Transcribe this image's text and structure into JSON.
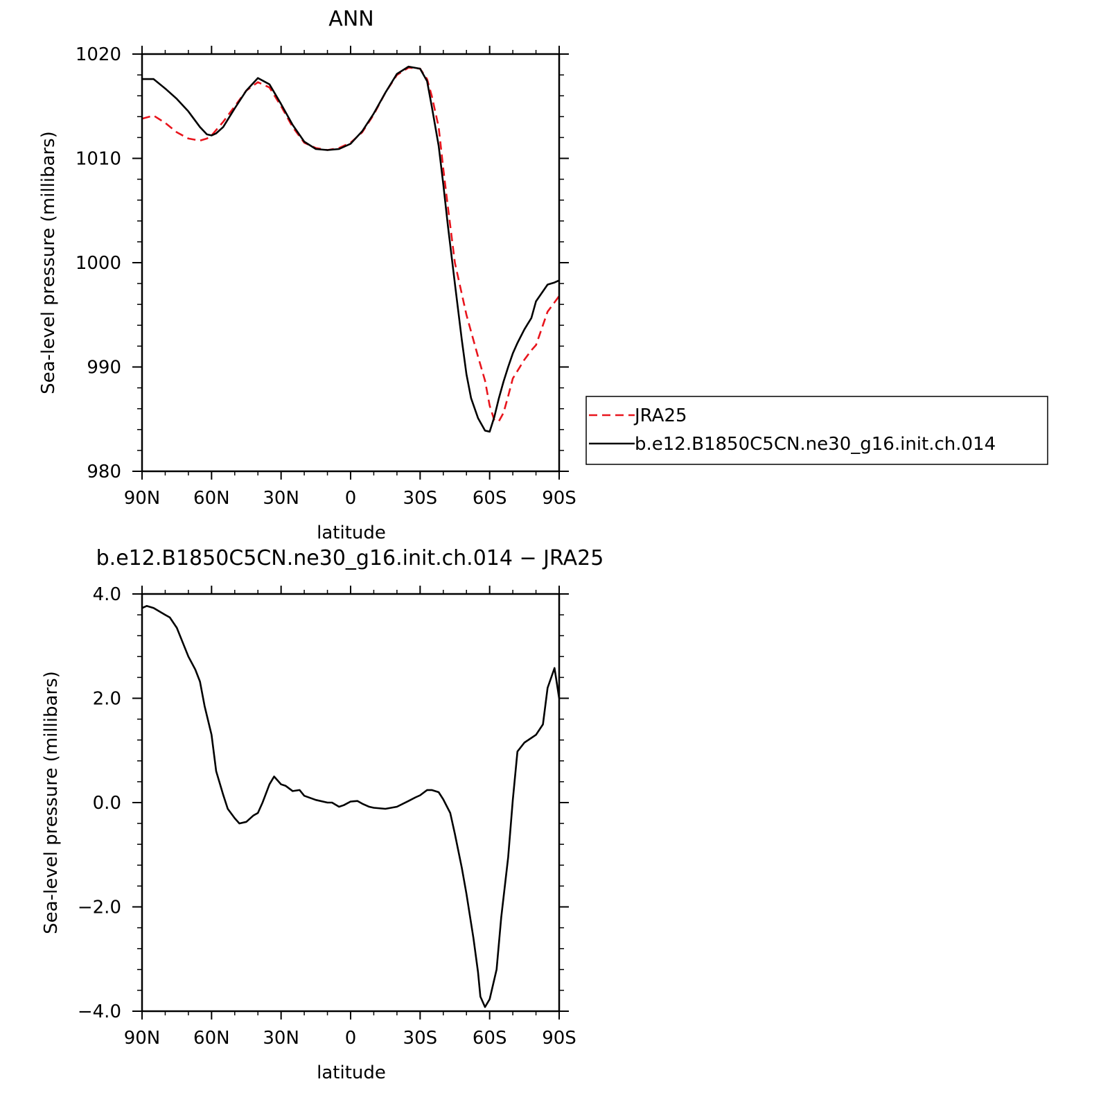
{
  "chart_data": [
    {
      "type": "line",
      "title": "ANN",
      "xlabel": "latitude",
      "ylabel": "Sea-level pressure (millibars)",
      "xlim": [
        90,
        -90
      ],
      "ylim": [
        980,
        1020
      ],
      "x_ticks": [
        {
          "value": 90,
          "label": "90N"
        },
        {
          "value": 60,
          "label": "60N"
        },
        {
          "value": 30,
          "label": "30N"
        },
        {
          "value": 0,
          "label": "0"
        },
        {
          "value": -30,
          "label": "30S"
        },
        {
          "value": -60,
          "label": "60S"
        },
        {
          "value": -90,
          "label": "90S"
        }
      ],
      "y_ticks": [
        {
          "value": 1020,
          "label": "1020"
        },
        {
          "value": 1010,
          "label": "1010"
        },
        {
          "value": 1000,
          "label": "1000"
        },
        {
          "value": 990,
          "label": "990"
        },
        {
          "value": 980,
          "label": "980"
        }
      ],
      "legend": {
        "placement": "right"
      },
      "series": [
        {
          "name": "JRA25",
          "color": "#e8141c",
          "dash": true,
          "x": [
            90,
            85,
            80,
            75,
            70,
            65,
            62,
            60,
            55,
            50,
            45,
            40,
            35,
            30,
            25,
            20,
            15,
            10,
            5,
            0,
            -5,
            -10,
            -15,
            -20,
            -25,
            -30,
            -33,
            -35,
            -38,
            -40,
            -42,
            -45,
            -50,
            -55,
            -58,
            -60,
            -62,
            -64,
            -66,
            -68,
            -70,
            -75,
            -78,
            -80,
            -85,
            -90
          ],
          "y": [
            1013.8,
            1014.1,
            1013.4,
            1012.5,
            1011.9,
            1011.7,
            1011.9,
            1012.2,
            1013.5,
            1015,
            1016.5,
            1017.3,
            1016.8,
            1015,
            1013,
            1011.5,
            1011,
            1010.8,
            1011,
            1011.5,
            1012.5,
            1014.2,
            1016.3,
            1018,
            1018.7,
            1018.6,
            1017.6,
            1016,
            1013,
            1009,
            1005.3,
            1000,
            995,
            991,
            988.7,
            986.3,
            984.9,
            984.8,
            985.6,
            987.2,
            988.9,
            990.7,
            991.6,
            992.1,
            995.3,
            996.8
          ]
        },
        {
          "name": "b.e12.B1850C5CN.ne30_g16.init.ch.014",
          "color": "#000000",
          "dash": false,
          "x": [
            90,
            85,
            80,
            75,
            70,
            65,
            62,
            60,
            58,
            55,
            50,
            45,
            40,
            35,
            30,
            25,
            20,
            15,
            10,
            5,
            0,
            -5,
            -10,
            -15,
            -20,
            -25,
            -30,
            -33,
            -35,
            -38,
            -40,
            -42,
            -45,
            -48,
            -50,
            -52,
            -55,
            -58,
            -60,
            -62,
            -64,
            -66,
            -68,
            -70,
            -72,
            -75,
            -78,
            -80,
            -85,
            -88,
            -90
          ],
          "y": [
            1017.6,
            1017.6,
            1016.7,
            1015.7,
            1014.5,
            1013,
            1012.3,
            1012.2,
            1012.4,
            1013,
            1014.8,
            1016.5,
            1017.7,
            1017.1,
            1015.2,
            1013.2,
            1011.6,
            1010.9,
            1010.8,
            1010.9,
            1011.4,
            1012.6,
            1014.3,
            1016.3,
            1018.1,
            1018.8,
            1018.6,
            1017.4,
            1015,
            1011.2,
            1007.5,
            1003.5,
            998,
            992.6,
            989.3,
            987,
            985.1,
            983.9,
            983.8,
            985.2,
            987,
            988.6,
            990,
            991.3,
            992.3,
            993.6,
            994.7,
            996.3,
            997.9,
            998.1,
            998.3
          ]
        }
      ]
    },
    {
      "type": "line",
      "title": "b.e12.B1850C5CN.ne30_g16.init.ch.014 − JRA25",
      "xlabel": "latitude",
      "ylabel": "Sea-level pressure (millibars)",
      "xlim": [
        90,
        -90
      ],
      "ylim": [
        -4,
        4
      ],
      "x_ticks": [
        {
          "value": 90,
          "label": "90N"
        },
        {
          "value": 60,
          "label": "60N"
        },
        {
          "value": 30,
          "label": "30N"
        },
        {
          "value": 0,
          "label": "0"
        },
        {
          "value": -30,
          "label": "30S"
        },
        {
          "value": -60,
          "label": "60S"
        },
        {
          "value": -90,
          "label": "90S"
        }
      ],
      "y_ticks": [
        {
          "value": 4,
          "label": "4.0"
        },
        {
          "value": 2,
          "label": "2.0"
        },
        {
          "value": 0,
          "label": "0.0"
        },
        {
          "value": -2,
          "label": "−2.0"
        },
        {
          "value": -4,
          "label": "−4.0"
        }
      ],
      "series": [
        {
          "color": "#000000",
          "dash": false,
          "x": [
            90,
            88,
            85,
            80,
            78,
            75,
            70,
            67,
            65,
            63,
            60,
            58,
            55,
            53,
            50,
            48,
            45,
            42,
            40,
            38,
            35,
            33,
            30,
            28,
            25,
            22,
            20,
            15,
            10,
            8,
            5,
            3,
            0,
            -3,
            -5,
            -8,
            -10,
            -15,
            -20,
            -25,
            -28,
            -30,
            -33,
            -35,
            -38,
            -40,
            -43,
            -45,
            -48,
            -50,
            -53,
            -55,
            -56,
            -58,
            -60,
            -63,
            -65,
            -68,
            -70,
            -72,
            -75,
            -80,
            -83,
            -85,
            -88,
            -90
          ],
          "y": [
            3.73,
            3.77,
            3.73,
            3.6,
            3.55,
            3.35,
            2.8,
            2.55,
            2.32,
            1.85,
            1.3,
            0.6,
            0.15,
            -0.12,
            -0.3,
            -0.4,
            -0.37,
            -0.25,
            -0.2,
            0.0,
            0.35,
            0.5,
            0.35,
            0.32,
            0.22,
            0.24,
            0.13,
            0.05,
            0.0,
            0.0,
            -0.08,
            -0.05,
            0.02,
            0.03,
            -0.02,
            -0.08,
            -0.1,
            -0.12,
            -0.08,
            0.03,
            0.1,
            0.14,
            0.24,
            0.24,
            0.2,
            0.06,
            -0.2,
            -0.6,
            -1.25,
            -1.75,
            -2.6,
            -3.25,
            -3.72,
            -3.92,
            -3.77,
            -3.2,
            -2.2,
            -1.05,
            0.05,
            0.98,
            1.15,
            1.3,
            1.5,
            2.2,
            2.58,
            2.0
          ]
        }
      ]
    }
  ]
}
